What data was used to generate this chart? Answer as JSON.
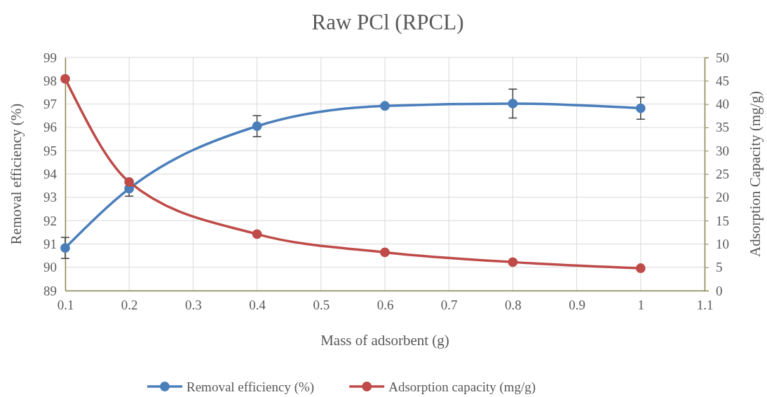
{
  "chart_data": {
    "type": "line",
    "title": "Raw PCl (RPCL)",
    "xlabel": "Mass of adsorbent (g)",
    "ylabel": "Removal efficiency (%)",
    "y2label": "Adsorption Capacity (mg/g)",
    "x": [
      0.1,
      0.2,
      0.4,
      0.6,
      0.8,
      1
    ],
    "xlim": [
      0.1,
      1.1
    ],
    "xticks": [
      0.1,
      0.2,
      0.3,
      0.4,
      0.5,
      0.6,
      0.7,
      0.8,
      0.9,
      1,
      1.1
    ],
    "ylim": [
      89,
      99
    ],
    "yticks": [
      89,
      90,
      91,
      92,
      93,
      94,
      95,
      96,
      97,
      98,
      99
    ],
    "y2lim": [
      0,
      50
    ],
    "y2ticks": [
      0,
      5,
      10,
      15,
      20,
      25,
      30,
      35,
      40,
      45,
      50
    ],
    "grid": true,
    "legend": "bottom",
    "marker": "circle",
    "line_style": "solid",
    "series": [
      {
        "name": "Removal efficiency (%)",
        "color": "#4a7ebb",
        "values": [
          90.83,
          93.37,
          96.05,
          96.92,
          97.02,
          96.82
        ],
        "errors": [
          0.45,
          0.32,
          0.45,
          null,
          0.62,
          0.47
        ]
      },
      {
        "name": "Adsorption capacity (mg/g)",
        "color": "#be4b48",
        "axis": "y2",
        "values": [
          45.4,
          23.3,
          12.1,
          8.2,
          6.1,
          4.8
        ]
      }
    ]
  }
}
